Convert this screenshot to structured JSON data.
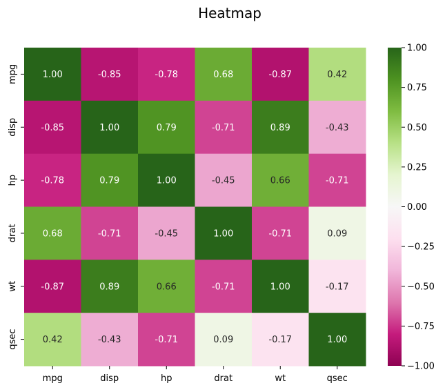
{
  "chart_data": {
    "type": "heatmap",
    "title": "Heatmap",
    "x_categories": [
      "mpg",
      "disp",
      "hp",
      "drat",
      "wt",
      "qsec"
    ],
    "y_categories": [
      "mpg",
      "disp",
      "hp",
      "drat",
      "wt",
      "qsec"
    ],
    "values": [
      [
        1.0,
        -0.85,
        -0.78,
        0.68,
        -0.87,
        0.42
      ],
      [
        -0.85,
        1.0,
        0.79,
        -0.71,
        0.89,
        -0.43
      ],
      [
        -0.78,
        0.79,
        1.0,
        -0.45,
        0.66,
        -0.71
      ],
      [
        0.68,
        -0.71,
        -0.45,
        1.0,
        -0.71,
        0.09
      ],
      [
        -0.87,
        0.89,
        0.66,
        -0.71,
        1.0,
        -0.17
      ],
      [
        0.42,
        -0.43,
        -0.71,
        0.09,
        -0.17,
        1.0
      ]
    ],
    "value_format": "0.00",
    "colormap": "PiYG",
    "colormap_stops": [
      "#8e0152",
      "#c51b7d",
      "#de77ae",
      "#f1b6da",
      "#fde0ef",
      "#f7f7f7",
      "#e6f5d0",
      "#b8e186",
      "#7fbc41",
      "#4d9221",
      "#276419"
    ],
    "vmin": -1.0,
    "vmax": 1.0,
    "colorbar": {
      "ticks": [
        1.0,
        0.75,
        0.5,
        0.25,
        0.0,
        -0.25,
        -0.5,
        -0.75,
        -1.0
      ],
      "tick_labels": [
        "1.00",
        "0.75",
        "0.50",
        "0.25",
        "0.00",
        "−0.25",
        "−0.50",
        "−0.75",
        "−1.00"
      ],
      "placement": "right"
    },
    "grid": false
  }
}
